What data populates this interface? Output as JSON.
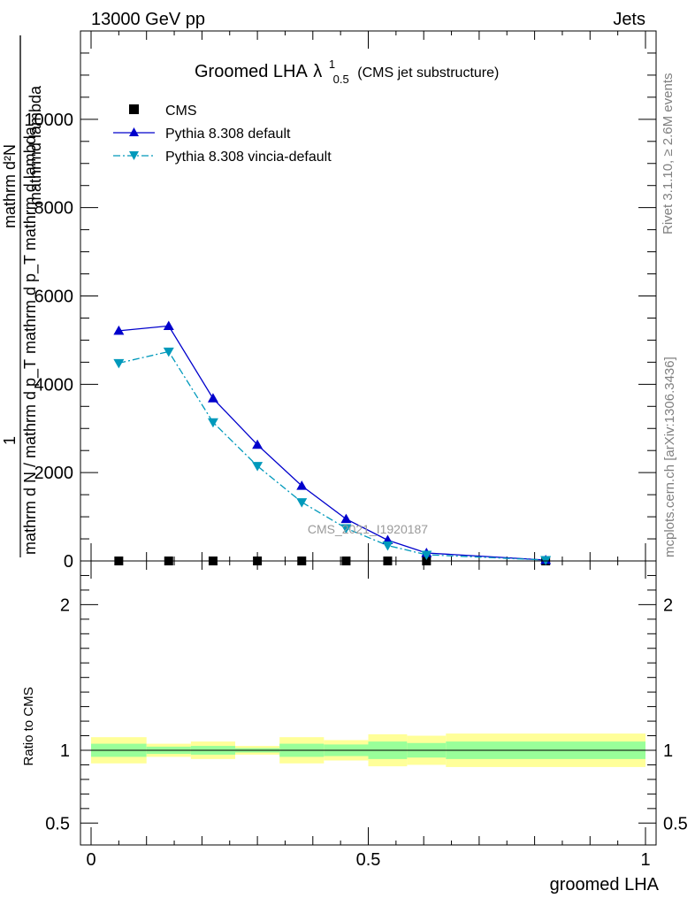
{
  "header": {
    "left": "13000 GeV pp",
    "right": "Jets"
  },
  "side_labels": {
    "rivet": "Rivet 3.1.10, ≥ 2.6M events",
    "mcplots": "mcplots.cern.ch [arXiv:1306.3436]"
  },
  "watermark": "CMS_2021_I1920187",
  "colors": {
    "pythia_default": "#0000cc",
    "pythia_vincia": "#0099bb",
    "band_inner": "#99ff99",
    "band_outer": "#ffff99"
  },
  "chart_data": [
    {
      "type": "line",
      "title_main": "Groomed LHA",
      "title_symbol": "λ",
      "title_sup": "1",
      "title_sub": "0.5",
      "title_suffix": "(CMS jet substructure)",
      "ylabel_num": "1",
      "ylabel_den": "mathrm d N / mathrm d p_T",
      "ylabel_frac_num": "mathrm d²N",
      "ylabel_frac_den": "mathrm d p_T mathrm d lambda",
      "ylabel_overlap": "mathrmd lambda",
      "xlim": [
        0,
        1
      ],
      "ylim": [
        0,
        12000
      ],
      "yticks": [
        0,
        2000,
        4000,
        6000,
        8000,
        10000
      ],
      "ytick_labels": [
        "0",
        "2000",
        "4000",
        "6000",
        "8000",
        "10000"
      ],
      "legend": [
        {
          "key": "cms",
          "label": "CMS"
        },
        {
          "key": "default",
          "label": "Pythia 8.308 default"
        },
        {
          "key": "vincia",
          "label": "Pythia 8.308 vincia-default"
        }
      ],
      "x": [
        0.05,
        0.14,
        0.22,
        0.3,
        0.38,
        0.46,
        0.535,
        0.605,
        0.82
      ],
      "series": [
        {
          "name": "CMS",
          "key": "cms",
          "values": [
            0,
            0,
            0,
            0,
            0,
            0,
            0,
            0,
            0
          ]
        },
        {
          "name": "Pythia 8.308 default",
          "key": "default",
          "values": [
            5210,
            5320,
            3680,
            2630,
            1700,
            950,
            470,
            180,
            20
          ]
        },
        {
          "name": "Pythia 8.308 vincia-default",
          "key": "vincia",
          "values": [
            4480,
            4740,
            3140,
            2150,
            1330,
            740,
            350,
            140,
            20
          ]
        }
      ]
    },
    {
      "type": "area",
      "ylabel": "Ratio to CMS",
      "xlabel": "groomed LHA",
      "xlim": [
        0,
        1
      ],
      "ylim": [
        0.35,
        2.3
      ],
      "yticks": [
        0.5,
        1,
        2
      ],
      "ytick_labels": [
        "0.5",
        "1",
        "2"
      ],
      "xticks": [
        0,
        0.5,
        1
      ],
      "xtick_labels": [
        "0",
        "0.5",
        "1"
      ],
      "bins": [
        {
          "lo": 0.0,
          "hi": 0.1,
          "inner": [
            0.955,
            1.045
          ],
          "outer": [
            0.91,
            1.09
          ]
        },
        {
          "lo": 0.1,
          "hi": 0.18,
          "inner": [
            0.975,
            1.025
          ],
          "outer": [
            0.955,
            1.045
          ]
        },
        {
          "lo": 0.18,
          "hi": 0.26,
          "inner": [
            0.97,
            1.03
          ],
          "outer": [
            0.94,
            1.06
          ]
        },
        {
          "lo": 0.26,
          "hi": 0.34,
          "inner": [
            0.985,
            1.015
          ],
          "outer": [
            0.97,
            1.03
          ]
        },
        {
          "lo": 0.34,
          "hi": 0.42,
          "inner": [
            0.955,
            1.045
          ],
          "outer": [
            0.91,
            1.09
          ]
        },
        {
          "lo": 0.42,
          "hi": 0.5,
          "inner": [
            0.96,
            1.04
          ],
          "outer": [
            0.93,
            1.07
          ]
        },
        {
          "lo": 0.5,
          "hi": 0.57,
          "inner": [
            0.94,
            1.06
          ],
          "outer": [
            0.89,
            1.11
          ]
        },
        {
          "lo": 0.57,
          "hi": 0.64,
          "inner": [
            0.95,
            1.05
          ],
          "outer": [
            0.9,
            1.1
          ]
        },
        {
          "lo": 0.64,
          "hi": 1.0,
          "inner": [
            0.94,
            1.06
          ],
          "outer": [
            0.885,
            1.115
          ]
        }
      ]
    }
  ]
}
